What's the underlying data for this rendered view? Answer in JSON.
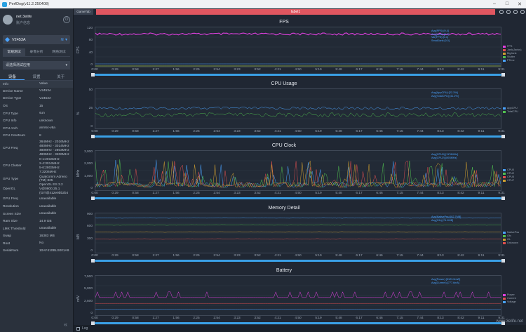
{
  "window": {
    "title": "PerfDog(v11.2.250408)"
  },
  "user": {
    "name": "net 3elife",
    "sub": "账户信息"
  },
  "device": {
    "name": "V2453A"
  },
  "mode_tabs": [
    "常规测试",
    "录像分析",
    "网络测试"
  ],
  "app_select": {
    "placeholder": "请选择测试应用"
  },
  "sub_tabs": [
    "设备",
    "设置",
    "关于"
  ],
  "info_table": {
    "header": [
      "Info",
      "Value"
    ],
    "rows": [
      [
        "Device Name",
        "V2453A"
      ],
      [
        "Device Type",
        "V2453A"
      ],
      [
        "OS",
        "15"
      ],
      [
        "CPU Type",
        "sun"
      ],
      [
        "CPU Info",
        "unknown"
      ],
      [
        "CPU Arch",
        "arm64-v8a"
      ],
      [
        "CPU CoreNum",
        "8"
      ],
      [
        "CPU Freq",
        "364MHz - 2016MHz\n480MHz - 3014MHz\n480MHz - 2803MHz\n480MHz - 3206MHz"
      ],
      [
        "CPU Cluster",
        "0-1:2016MHz\n2-4:3014MHz\n5-6:2803MHz\n7:3206MHz"
      ],
      [
        "GPU Type",
        "Qualcomm Adreno (TM) 825"
      ],
      [
        "OpenGL",
        "OpenGL ES 3.2 V@0800.25.1 (GIT@412e9bb2b4"
      ],
      [
        "GPU Freq",
        "unavailable"
      ],
      [
        "Resolution",
        "unavailable"
      ],
      [
        "Screen Size",
        "unavailable"
      ],
      [
        "Ram Size",
        "14.9 GB"
      ],
      [
        "LMK Threshold",
        "unavailable"
      ],
      [
        "Swap",
        "16383 MB"
      ],
      [
        "Root",
        "No"
      ],
      [
        "SerialNum",
        "10AF410BLS001A9"
      ]
    ]
  },
  "top_tabs": {
    "game_tab": "GameTab",
    "label_tab": "label1"
  },
  "bottom": {
    "log": "Log",
    "watermark": "www.3elife.net"
  },
  "x_ticks": [
    "0:00",
    "0:29",
    "0:58",
    "1:27",
    "1:56",
    "2:25",
    "2:54",
    "3:23",
    "3:52",
    "4:21",
    "4:50",
    "5:19",
    "5:48",
    "6:17",
    "6:46",
    "7:15",
    "7:44",
    "8:13",
    "8:42",
    "9:11",
    "9:31"
  ],
  "panels": [
    {
      "title": "FPS",
      "ylabel": "FPS",
      "yticks": [
        "120",
        "80",
        "40",
        "0"
      ],
      "ymax": 120,
      "legend": [
        {
          "n": "FPS",
          "c": "#e040e0"
        },
        {
          "n": "Jank(Janks)",
          "c": "#e05050"
        },
        {
          "n": "BigJank",
          "c": "#d0a030"
        },
        {
          "n": "Stutter",
          "c": "#50c050"
        },
        {
          "n": "FTime",
          "c": "#4aa3ff"
        }
      ],
      "stats": [
        "Avg(FPS):[9.4]",
        "Avg(Jank):[0.0]",
        "Var(FPS):[0.1]",
        "SmallJank:[0.0]"
      ]
    },
    {
      "title": "CPU Usage",
      "ylabel": "%",
      "yticks": [
        "50",
        "25",
        "0"
      ],
      "ymax": 50,
      "legend": [
        {
          "n": "AppCPU",
          "c": "#4aa3ff"
        },
        {
          "n": "TotalCPU",
          "c": "#50c050"
        }
      ],
      "stats": [
        "Avg(AppCPU):[22.3%]",
        "Avg(TotalCPU):[41.2%]"
      ]
    },
    {
      "title": "CPU Clock",
      "ylabel": "MHz",
      "yticks": [
        "3,000",
        "2,000",
        "1,000",
        "0"
      ],
      "ymax": 3000,
      "legend": [
        {
          "n": "CPU0",
          "c": "#4aa3ff"
        },
        {
          "n": "CPU2",
          "c": "#50c050"
        },
        {
          "n": "CPU5",
          "c": "#e05050"
        },
        {
          "n": "CPU7",
          "c": "#d0a030"
        }
      ],
      "stats": [
        "Avg(CPU0):[1176MHz]",
        "Avg(CPU2):[893MHz]"
      ]
    },
    {
      "title": "Memory Detail",
      "ylabel": "MB",
      "yticks": [
        "900",
        "600",
        "300",
        "0"
      ],
      "ymax": 900,
      "legend": [
        {
          "n": "NativePss",
          "c": "#4aa3ff"
        },
        {
          "n": "Gfx",
          "c": "#50c050"
        },
        {
          "n": "GL",
          "c": "#d0a030"
        },
        {
          "n": "Unknown",
          "c": "#e05050"
        }
      ],
      "stats": [
        "Avg(NativePss):[62.7MB]",
        "Avg(Gfx):[74.1MB]"
      ]
    },
    {
      "title": "Battery",
      "ylabel": "mW",
      "yticks": [
        "7,500",
        "5,000",
        "2,500",
        "0"
      ],
      "ymax": 7500,
      "legend": [
        {
          "n": "Power",
          "c": "#e040e0"
        },
        {
          "n": "Current",
          "c": "#e05050"
        },
        {
          "n": "Voltage",
          "c": "#4aa3ff"
        }
      ],
      "stats": [
        "Avg(Power):[3123.5mW]",
        "Avg(Current):[777.6mA]"
      ]
    }
  ]
}
